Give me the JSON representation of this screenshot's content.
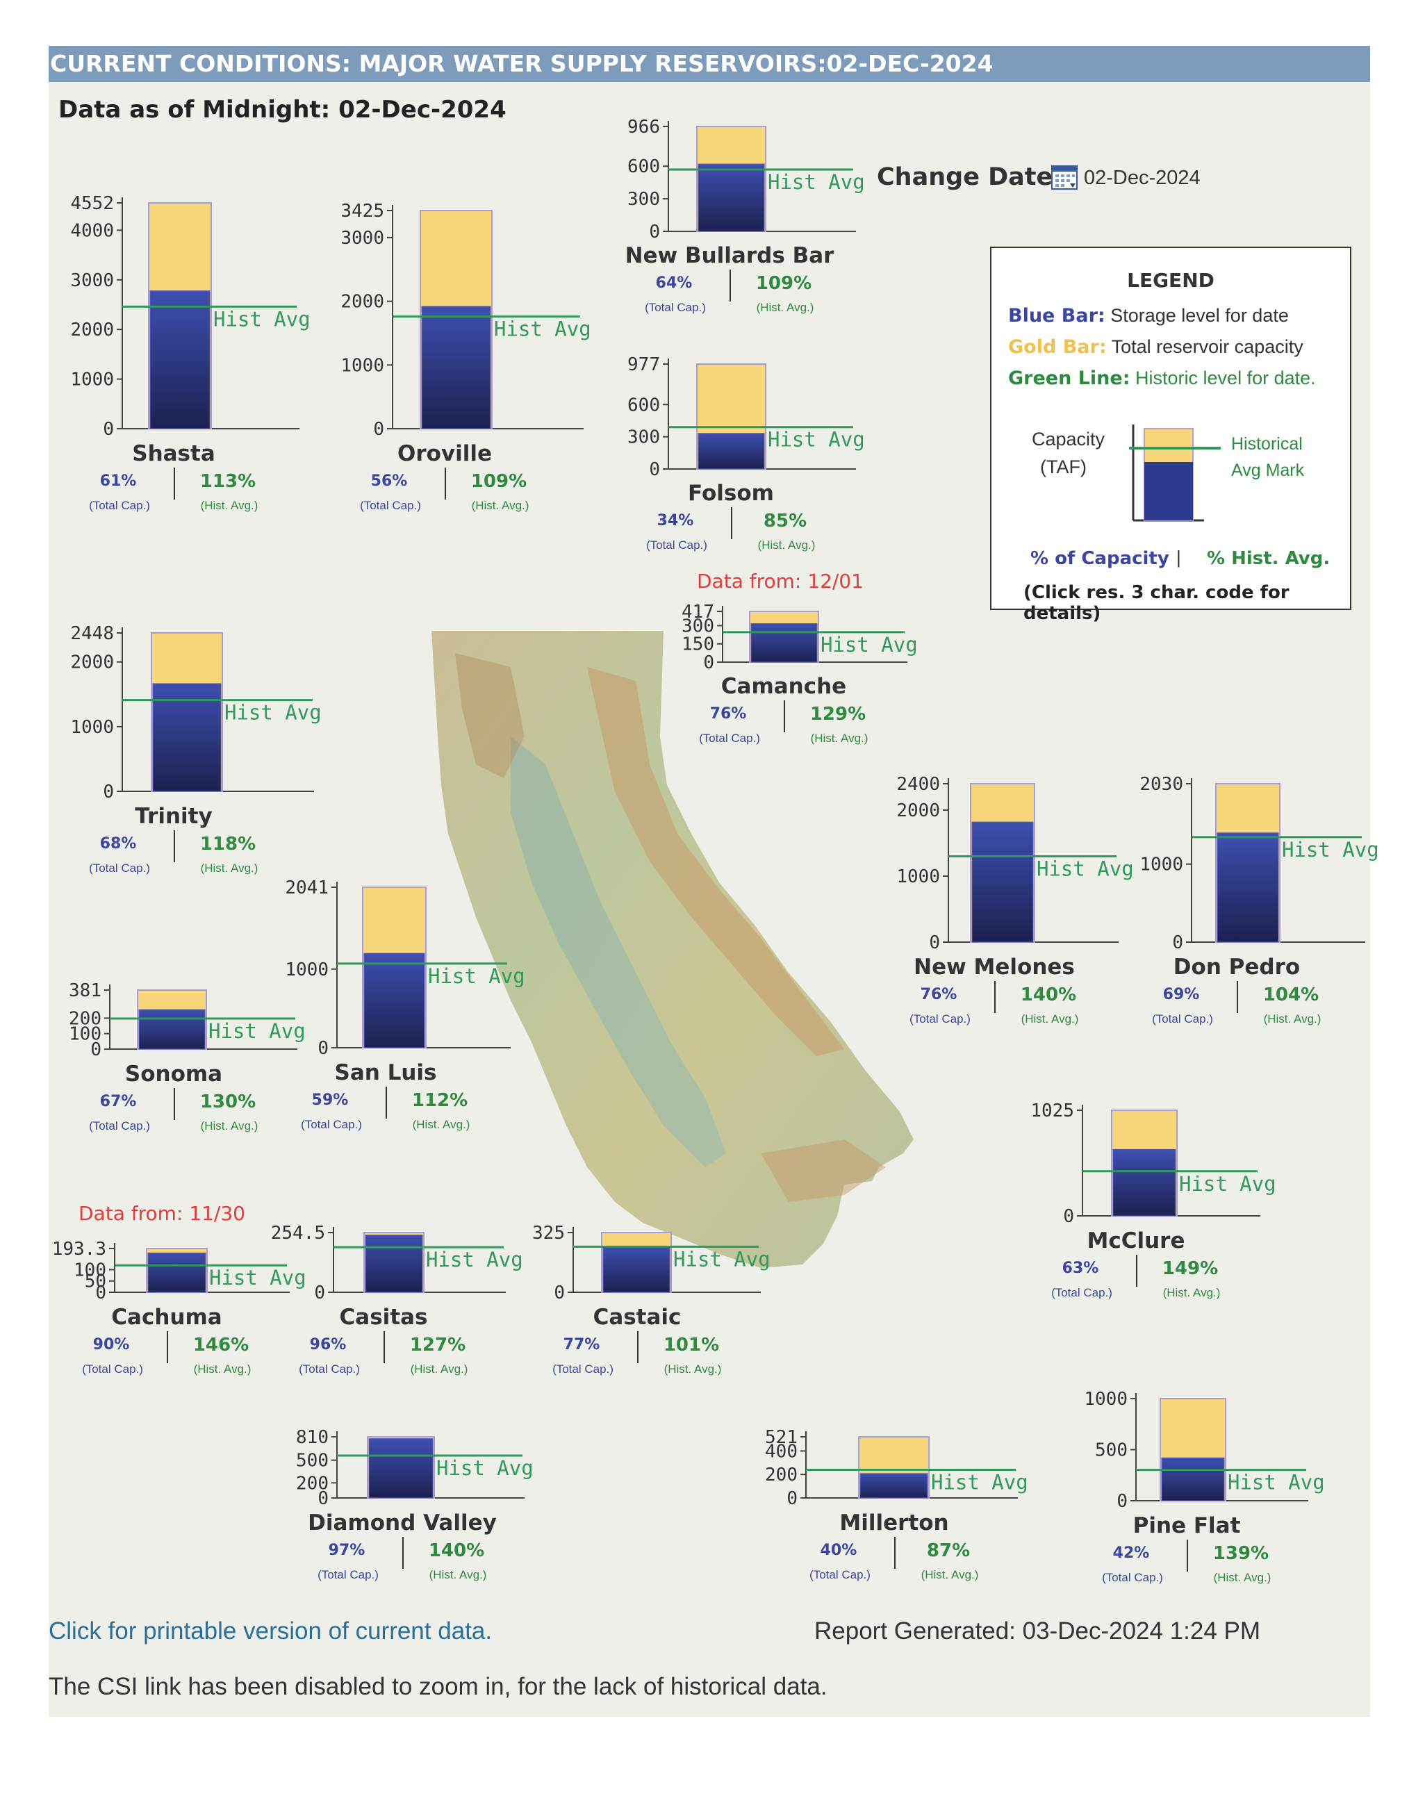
{
  "header": {
    "title": "CURRENT CONDITIONS: MAJOR WATER SUPPLY RESERVOIRS:02-DEC-2024",
    "as_of": "Data as of Midnight: 02-Dec-2024",
    "change_date_label": "Change Date:",
    "date_value": "02-Dec-2024"
  },
  "colors": {
    "storage": "#2c3a8f",
    "capacity": "#f7d77a",
    "hist_line": "#2f9a5a",
    "cap_pct": "#3a46a0",
    "hist_pct": "#2d8a3f"
  },
  "labels": {
    "hist_avg": "Hist Avg",
    "total_cap": "(Total Cap.)",
    "hist_avg_sub": "(Hist. Avg.)"
  },
  "legend": {
    "title": "LEGEND",
    "blue_key": "Blue Bar:",
    "blue_text": "Storage level for date",
    "gold_key": "Gold Bar:",
    "gold_text": "Total reservoir capacity",
    "green_key": "Green Line:",
    "green_text": "Historic level for date.",
    "capacity_label": "Capacity",
    "capacity_unit": "(TAF)",
    "hist_mark_1": "Historical",
    "hist_mark_2": "Avg Mark",
    "pct_capacity": "% of Capacity",
    "pct_hist": "% Hist. Avg.",
    "click_note": "(Click res. 3 char. code for details)"
  },
  "reservoirs": [
    {
      "name": "Shasta",
      "capacity": 4552,
      "storage": 2780,
      "hist_avg": 2460,
      "ticks": [
        "4552",
        "4000",
        "3000",
        "2000",
        "1000",
        "0"
      ],
      "tickvals": [
        4552,
        4000,
        3000,
        2000,
        1000,
        0
      ],
      "pct_capacity": "61%",
      "pct_hist": "113%"
    },
    {
      "name": "Oroville",
      "capacity": 3425,
      "storage": 1920,
      "hist_avg": 1760,
      "ticks": [
        "3425",
        "3000",
        "2000",
        "1000",
        "0"
      ],
      "tickvals": [
        3425,
        3000,
        2000,
        1000,
        0
      ],
      "pct_capacity": "56%",
      "pct_hist": "109%"
    },
    {
      "name": "New Bullards Bar",
      "capacity": 966,
      "storage": 620,
      "hist_avg": 569,
      "ticks": [
        "966",
        "600",
        "300",
        "0"
      ],
      "tickvals": [
        966,
        600,
        300,
        0
      ],
      "pct_capacity": "64%",
      "pct_hist": "109%"
    },
    {
      "name": "Folsom",
      "capacity": 977,
      "storage": 332,
      "hist_avg": 390,
      "ticks": [
        "977",
        "600",
        "300",
        "0"
      ],
      "tickvals": [
        977,
        600,
        300,
        0
      ],
      "pct_capacity": "34%",
      "pct_hist": "85%"
    },
    {
      "name": "Trinity",
      "capacity": 2448,
      "storage": 1665,
      "hist_avg": 1410,
      "ticks": [
        "2448",
        "2000",
        "1000",
        "0"
      ],
      "tickvals": [
        2448,
        2000,
        1000,
        0
      ],
      "pct_capacity": "68%",
      "pct_hist": "118%"
    },
    {
      "name": "Camanche",
      "capacity": 417,
      "storage": 317,
      "hist_avg": 246,
      "ticks": [
        "417",
        "300",
        "150",
        "0"
      ],
      "tickvals": [
        417,
        300,
        150,
        0
      ],
      "pct_capacity": "76%",
      "pct_hist": "129%",
      "data_from": "Data from:  12/01"
    },
    {
      "name": "New Melones",
      "capacity": 2400,
      "storage": 1820,
      "hist_avg": 1300,
      "ticks": [
        "2400",
        "2000",
        "1000",
        "0"
      ],
      "tickvals": [
        2400,
        2000,
        1000,
        0
      ],
      "pct_capacity": "76%",
      "pct_hist": "140%"
    },
    {
      "name": "Don Pedro",
      "capacity": 2030,
      "storage": 1400,
      "hist_avg": 1345,
      "ticks": [
        "2030",
        "1000",
        "0"
      ],
      "tickvals": [
        2030,
        1000,
        0
      ],
      "pct_capacity": "69%",
      "pct_hist": "104%"
    },
    {
      "name": "Sonoma",
      "capacity": 381,
      "storage": 255,
      "hist_avg": 197,
      "ticks": [
        "381",
        "200",
        "100",
        "0"
      ],
      "tickvals": [
        381,
        200,
        100,
        0
      ],
      "pct_capacity": "67%",
      "pct_hist": "130%"
    },
    {
      "name": "San Luis",
      "capacity": 2041,
      "storage": 1200,
      "hist_avg": 1070,
      "ticks": [
        "2041",
        "1000",
        "0"
      ],
      "tickvals": [
        2041,
        1000,
        0
      ],
      "pct_capacity": "59%",
      "pct_hist": "112%"
    },
    {
      "name": "McClure",
      "capacity": 1025,
      "storage": 645,
      "hist_avg": 433,
      "ticks": [
        "1025",
        "0"
      ],
      "tickvals": [
        1025,
        0
      ],
      "pct_capacity": "63%",
      "pct_hist": "149%"
    },
    {
      "name": "Cachuma",
      "capacity": 193.3,
      "storage": 174,
      "hist_avg": 119,
      "ticks": [
        "193.3",
        "100",
        "50",
        "0"
      ],
      "tickvals": [
        193.3,
        100,
        50,
        0
      ],
      "pct_capacity": "90%",
      "pct_hist": "146%",
      "data_from": "Data from:  11/30"
    },
    {
      "name": "Casitas",
      "capacity": 254.5,
      "storage": 244,
      "hist_avg": 192,
      "ticks": [
        "254.5",
        "0"
      ],
      "tickvals": [
        254.5,
        0
      ],
      "pct_capacity": "96%",
      "pct_hist": "127%"
    },
    {
      "name": "Castaic",
      "capacity": 325,
      "storage": 250,
      "hist_avg": 248,
      "ticks": [
        "325",
        "0"
      ],
      "tickvals": [
        325,
        0
      ],
      "pct_capacity": "77%",
      "pct_hist": "101%"
    },
    {
      "name": "Diamond Valley",
      "capacity": 810,
      "storage": 786,
      "hist_avg": 561,
      "ticks": [
        "810",
        "500",
        "200",
        "0"
      ],
      "tickvals": [
        810,
        500,
        200,
        0
      ],
      "pct_capacity": "97%",
      "pct_hist": "140%"
    },
    {
      "name": "Millerton",
      "capacity": 521,
      "storage": 208,
      "hist_avg": 240,
      "ticks": [
        "521",
        "400",
        "200",
        "0"
      ],
      "tickvals": [
        521,
        400,
        200,
        0
      ],
      "pct_capacity": "40%",
      "pct_hist": "87%"
    },
    {
      "name": "Pine Flat",
      "capacity": 1000,
      "storage": 420,
      "hist_avg": 302,
      "ticks": [
        "1000",
        "500",
        "0"
      ],
      "tickvals": [
        1000,
        500,
        0
      ],
      "pct_capacity": "42%",
      "pct_hist": "139%"
    }
  ],
  "footer": {
    "printable_link": "Click for printable version of current data.",
    "report_generated": "Report Generated: 03-Dec-2024 1:24 PM",
    "note": "The CSI link has been disabled to zoom in, for the lack of historical data."
  }
}
